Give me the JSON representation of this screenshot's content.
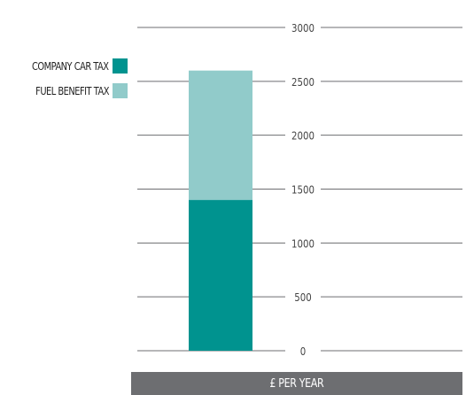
{
  "chart_data": {
    "type": "bar",
    "stacked": true,
    "categories": [
      ""
    ],
    "series": [
      {
        "name": "COMPANY CAR TAX",
        "values": [
          1400
        ],
        "color": "#00938f"
      },
      {
        "name": "FUEL BENEFIT TAX",
        "values": [
          1200
        ],
        "color": "#91cbca"
      }
    ],
    "ylim": [
      0,
      3000
    ],
    "yticks": [
      0,
      500,
      1000,
      1500,
      2000,
      2500,
      3000
    ],
    "xlabel": "£ PER YEAR",
    "ylabel": "",
    "grid": true,
    "legend_position": "left"
  },
  "legend": {
    "items": [
      {
        "label": "COMPANY CAR TAX",
        "color": "#00938f"
      },
      {
        "label": "FUEL BENEFIT TAX",
        "color": "#91cbca"
      }
    ]
  },
  "unit_label": "£ PER YEAR",
  "colors": {
    "grid": "#6d6e71",
    "tick_text": "#444444",
    "unit_bar": "#6d6e71"
  }
}
